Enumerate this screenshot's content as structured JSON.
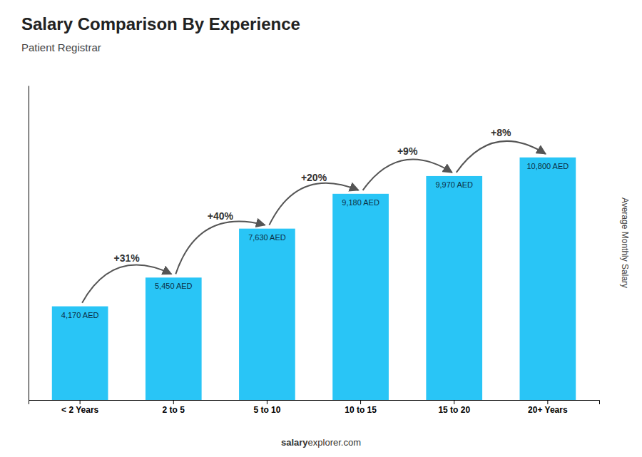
{
  "chart_data": {
    "type": "bar",
    "title": "Salary Comparison By Experience",
    "subtitle": "Patient Registrar",
    "y_label": "Average Monthly Salary",
    "categories": [
      "< 2 Years",
      "2 to 5",
      "5 to 10",
      "10 to 15",
      "15 to 20",
      "20+ Years"
    ],
    "values": [
      4170,
      5450,
      7630,
      9180,
      9970,
      10800
    ],
    "value_labels": [
      "4,170 AED",
      "5,450 AED",
      "7,630 AED",
      "9,180 AED",
      "9,970 AED",
      "10,800 AED"
    ],
    "data_labels": true,
    "annotations": [
      null,
      "+31%",
      "+40%",
      "+20%",
      "+9%",
      "+8%"
    ],
    "color": "#29c5f6",
    "ylim": [
      0,
      14000
    ],
    "tick_labels": "x",
    "footer": [
      "salary",
      "explorer.com"
    ]
  }
}
